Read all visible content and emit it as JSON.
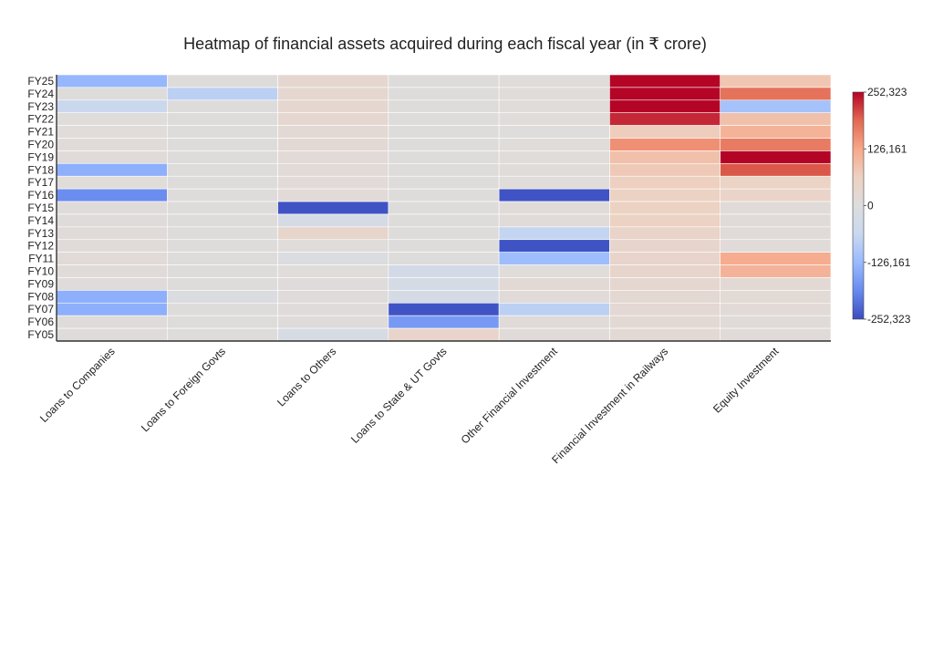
{
  "chart_data": {
    "type": "heatmap",
    "title": "Heatmap of financial assets acquired during each fiscal year (in ₹ crore)",
    "xlabel": "",
    "ylabel": "",
    "x": [
      "Loans to Companies",
      "Loans to Foreign Govts",
      "Loans to Others",
      "Loans to State & UT Govts",
      "Other Financial Investment",
      "Financial Investment in Railways",
      "Equity Investment"
    ],
    "y": [
      "FY25",
      "FY24",
      "FY23",
      "FY22",
      "FY21",
      "FY20",
      "FY19",
      "FY18",
      "FY17",
      "FY16",
      "FY15",
      "FY14",
      "FY13",
      "FY12",
      "FY11",
      "FY10",
      "FY09",
      "FY08",
      "FY07",
      "FY06",
      "FY05"
    ],
    "z": [
      [
        -130000,
        4000,
        30000,
        4000,
        6000,
        252000,
        80000
      ],
      [
        5000,
        -80000,
        30000,
        5000,
        6000,
        252000,
        180000
      ],
      [
        -60000,
        4000,
        30000,
        4000,
        6000,
        252000,
        -110000
      ],
      [
        6000,
        4000,
        30000,
        4000,
        6000,
        230000,
        90000
      ],
      [
        6000,
        4000,
        20000,
        4000,
        2000,
        70000,
        110000
      ],
      [
        10000,
        4000,
        20000,
        4000,
        6000,
        150000,
        170000
      ],
      [
        10000,
        4000,
        15000,
        4000,
        6000,
        90000,
        252323
      ],
      [
        -140000,
        4000,
        15000,
        4000,
        6000,
        75000,
        200000
      ],
      [
        6000,
        4000,
        15000,
        4000,
        6000,
        65000,
        55000
      ],
      [
        -185000,
        4000,
        15000,
        4000,
        -245000,
        60000,
        50000
      ],
      [
        8000,
        4000,
        -245000,
        4000,
        12000,
        60000,
        12000
      ],
      [
        8000,
        4000,
        -25000,
        4000,
        12000,
        60000,
        10000
      ],
      [
        12000,
        4000,
        40000,
        4000,
        -70000,
        50000,
        10000
      ],
      [
        10000,
        4000,
        6000,
        4000,
        -245000,
        40000,
        10000
      ],
      [
        14000,
        4000,
        -10000,
        4000,
        -120000,
        45000,
        120000
      ],
      [
        10000,
        4000,
        6000,
        -35000,
        6000,
        40000,
        110000
      ],
      [
        8000,
        4000,
        8000,
        -25000,
        20000,
        30000,
        22000
      ],
      [
        -140000,
        -10000,
        8000,
        -25000,
        12000,
        25000,
        18000
      ],
      [
        -140000,
        4000,
        8000,
        -245000,
        -80000,
        24000,
        15000
      ],
      [
        8000,
        4000,
        8000,
        -170000,
        10000,
        20000,
        12000
      ],
      [
        8000,
        4000,
        -20000,
        45000,
        10000,
        20000,
        12000
      ]
    ],
    "zmin": -252323,
    "zmax": 252323,
    "colorscale": [
      "#3b4cc0",
      "#688aef",
      "#99baff",
      "#c9d8ef",
      "#dddddd",
      "#edd1c2",
      "#f7a889",
      "#e26952",
      "#b40426"
    ],
    "colorbar": {
      "ticks": [
        252323,
        126161,
        0,
        -126161,
        -252323
      ],
      "ticklabels": [
        "252,323",
        "126,161",
        "0",
        "-126,161",
        "-252,323"
      ]
    }
  }
}
